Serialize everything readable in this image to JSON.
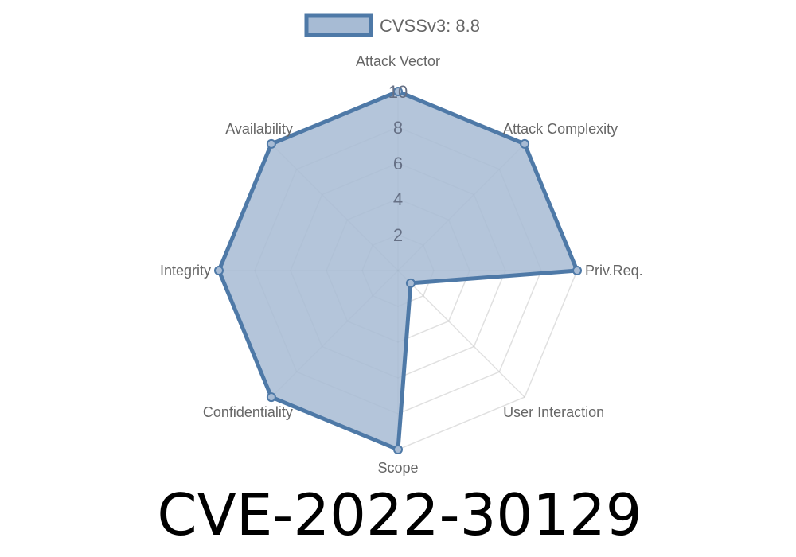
{
  "chart_data": {
    "type": "radar",
    "categories": [
      "Attack Vector",
      "Attack Complexity",
      "Priv.Req.",
      "User Interaction",
      "Scope",
      "Confidentiality",
      "Integrity",
      "Availability"
    ],
    "series": [
      {
        "name": "CVSSv3: 8.8",
        "values": [
          10,
          10,
          10,
          1,
          10,
          10,
          10,
          10
        ]
      }
    ],
    "rlim": [
      0,
      10
    ],
    "ticks": [
      "2",
      "4",
      "6",
      "8",
      "10"
    ],
    "tick_values": [
      2,
      4,
      6,
      8,
      10
    ],
    "grid": true,
    "legend_position": "top",
    "colors": {
      "line": "#4e79a7",
      "fill": "#a7bbd4",
      "grid": "#dddddd"
    }
  },
  "title": "CVE-2022-30129"
}
